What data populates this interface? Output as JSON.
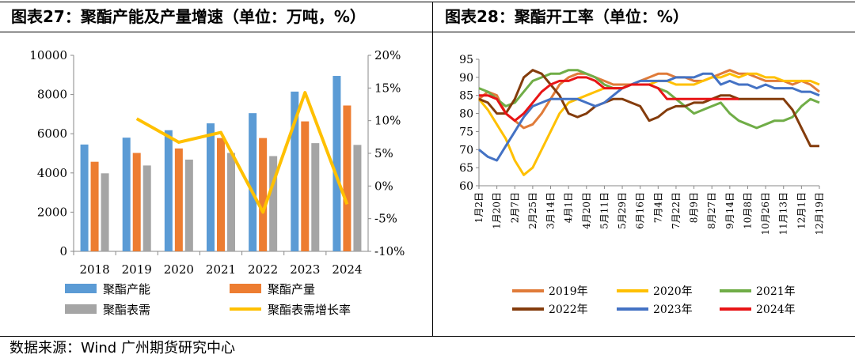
{
  "titles": {
    "left": "图表27：聚酯产能及产量增速（单位：万吨，%）",
    "right": "图表28：聚酯开工率（单位：%）"
  },
  "source": "数据来源：Wind  广州期货研究中心",
  "colors": {
    "capacity": "#5B9BD5",
    "output": "#ED7D31",
    "demand": "#A5A5A5",
    "growth": "#FFC000",
    "y2019": "#E07B39",
    "y2020": "#FFC000",
    "y2021": "#70AD47",
    "y2022": "#843C0C",
    "y2023": "#4472C4",
    "y2024": "#E81416"
  },
  "chart_data": [
    {
      "type": "bar",
      "categories": [
        "2018",
        "2019",
        "2020",
        "2021",
        "2022",
        "2023",
        "2024"
      ],
      "series": [
        {
          "name": "聚酯产能",
          "kind": "bar",
          "axis": "left",
          "values": [
            5450,
            5800,
            6180,
            6530,
            7050,
            8150,
            8950
          ]
        },
        {
          "name": "聚酯产量",
          "kind": "bar",
          "axis": "left",
          "values": [
            4570,
            5020,
            5250,
            5780,
            5780,
            6630,
            7440
          ]
        },
        {
          "name": "聚酯表需",
          "kind": "bar",
          "axis": "left",
          "values": [
            3980,
            4380,
            4680,
            5020,
            4860,
            5520,
            5430
          ]
        },
        {
          "name": "聚酯表需增长率",
          "kind": "line",
          "axis": "right",
          "values": [
            null,
            10.3,
            6.7,
            8.2,
            -4.0,
            14.3,
            -2.8
          ]
        }
      ],
      "ylim": [
        0,
        10000
      ],
      "yticks": [
        "0",
        "2000",
        "4000",
        "6000",
        "8000",
        "10000"
      ],
      "y2lim": [
        -10,
        20
      ],
      "y2ticks": [
        "-10%",
        "-5%",
        "0%",
        "5%",
        "10%",
        "15%",
        "20%"
      ],
      "legend": "bottom"
    },
    {
      "type": "line",
      "x_ticks": [
        "1月2日",
        "1月20日",
        "2月7日",
        "2月25日",
        "3月14日",
        "4月1日",
        "4月20日",
        "5月11日",
        "5月29日",
        "6月16日",
        "7月4日",
        "7月22日",
        "8月9日",
        "8月27日",
        "9月14日",
        "10月8日",
        "10月26日",
        "11月13日",
        "12月1日",
        "12月19日"
      ],
      "ylim": [
        60,
        95
      ],
      "yticks": [
        "60",
        "65",
        "70",
        "75",
        "80",
        "85",
        "90",
        "95"
      ],
      "legend": "bottom",
      "series": [
        {
          "name": "2019年",
          "x": [
            0,
            0.5,
            1,
            1.5,
            2,
            2.5,
            3,
            3.5,
            4,
            4.5,
            5,
            5.5,
            6,
            6.5,
            7,
            7.5,
            8,
            8.5,
            9,
            9.5,
            10,
            10.5,
            11,
            11.5,
            12,
            12.5,
            13,
            13.5,
            14,
            14.5,
            15,
            15.5,
            16,
            16.5,
            17,
            17.5,
            18,
            18.5,
            19
          ],
          "y": [
            84,
            86,
            85,
            80,
            78,
            76,
            77,
            80,
            84,
            88,
            90,
            91,
            91,
            90,
            89,
            88,
            88,
            88,
            89,
            90,
            91,
            91,
            90,
            90,
            89,
            89,
            90,
            91,
            92,
            91,
            91,
            90,
            89,
            89,
            89,
            88,
            89,
            88,
            86
          ]
        },
        {
          "name": "2020年",
          "x": [
            0,
            0.5,
            1,
            1.5,
            2,
            2.5,
            3,
            3.5,
            4,
            4.5,
            5,
            5.5,
            6,
            6.5,
            7,
            7.5,
            8,
            8.5,
            9,
            9.5,
            10,
            10.5,
            11,
            11.5,
            12,
            12.5,
            13,
            13.5,
            14,
            14.5,
            15,
            15.5,
            16,
            16.5,
            17,
            17.5,
            18,
            18.5,
            19
          ],
          "y": [
            84,
            81,
            77,
            73,
            67,
            63,
            65,
            70,
            75,
            80,
            83,
            84,
            85,
            86,
            87,
            87,
            87,
            88,
            88,
            88,
            89,
            89,
            88,
            88,
            88,
            89,
            90,
            90,
            91,
            90,
            91,
            91,
            90,
            90,
            89,
            89,
            89,
            89,
            88
          ]
        },
        {
          "name": "2021年",
          "x": [
            0,
            0.5,
            1,
            1.5,
            2,
            2.5,
            3,
            3.5,
            4,
            4.5,
            5,
            5.5,
            6,
            6.5,
            7,
            7.5,
            8,
            8.5,
            9,
            9.5,
            10,
            10.5,
            11,
            11.5,
            12,
            12.5,
            13,
            13.5,
            14,
            14.5,
            15,
            15.5,
            16,
            16.5,
            17,
            17.5,
            18,
            18.5,
            19
          ],
          "y": [
            87,
            86,
            84,
            82,
            83,
            86,
            89,
            90,
            91,
            91,
            92,
            92,
            91,
            90,
            88,
            87,
            87,
            88,
            88,
            88,
            87,
            86,
            84,
            82,
            80,
            81,
            82,
            83,
            80,
            78,
            77,
            76,
            77,
            78,
            78,
            79,
            82,
            84,
            83
          ]
        },
        {
          "name": "2022年",
          "x": [
            0,
            0.5,
            1,
            1.5,
            2,
            2.5,
            3,
            3.5,
            4,
            4.5,
            5,
            5.5,
            6,
            6.5,
            7,
            7.5,
            8,
            8.5,
            9,
            9.5,
            10,
            10.5,
            11,
            11.5,
            12,
            12.5,
            13,
            13.5,
            14,
            14.5,
            15,
            15.5,
            16,
            16.5,
            17,
            17.5,
            18,
            18.5,
            19
          ],
          "y": [
            84,
            83,
            80,
            80,
            84,
            90,
            92,
            91,
            88,
            85,
            80,
            79,
            80,
            82,
            83,
            84,
            84,
            83,
            82,
            78,
            79,
            81,
            82,
            82,
            83,
            83,
            84,
            85,
            85,
            84,
            84,
            84,
            84,
            84,
            84,
            81,
            76,
            71,
            71
          ]
        },
        {
          "name": "2023年",
          "x": [
            0,
            0.5,
            1,
            1.5,
            2,
            2.5,
            3,
            3.5,
            4,
            4.5,
            5,
            5.5,
            6,
            6.5,
            7,
            7.5,
            8,
            8.5,
            9,
            9.5,
            10,
            10.5,
            11,
            11.5,
            12,
            12.5,
            13,
            13.5,
            14,
            14.5,
            15,
            15.5,
            16,
            16.5,
            17,
            17.5,
            18,
            18.5,
            19
          ],
          "y": [
            70,
            68,
            67,
            71,
            75,
            79,
            82,
            83,
            84,
            84,
            84,
            84,
            83,
            82,
            83,
            85,
            87,
            88,
            89,
            89,
            89,
            89,
            90,
            90,
            90,
            91,
            91,
            88,
            89,
            88,
            88,
            87,
            88,
            87,
            87,
            87,
            86,
            86,
            85
          ]
        },
        {
          "name": "2024年",
          "x": [
            0,
            0.5,
            1,
            1.5,
            2,
            2.5,
            3,
            3.5,
            4,
            4.5,
            5,
            5.5,
            6,
            6.5,
            7,
            7.5,
            8,
            8.5,
            9,
            9.5,
            10,
            10.5,
            11,
            11.5,
            12,
            12.5,
            13,
            13.5,
            14,
            14.5
          ],
          "y": [
            85,
            85,
            84,
            80,
            78,
            80,
            83,
            86,
            88,
            89,
            89,
            90,
            90,
            89,
            87,
            87,
            87,
            88,
            88,
            88,
            87,
            84,
            84,
            84,
            84,
            84,
            84,
            84,
            84,
            84
          ]
        }
      ]
    }
  ]
}
